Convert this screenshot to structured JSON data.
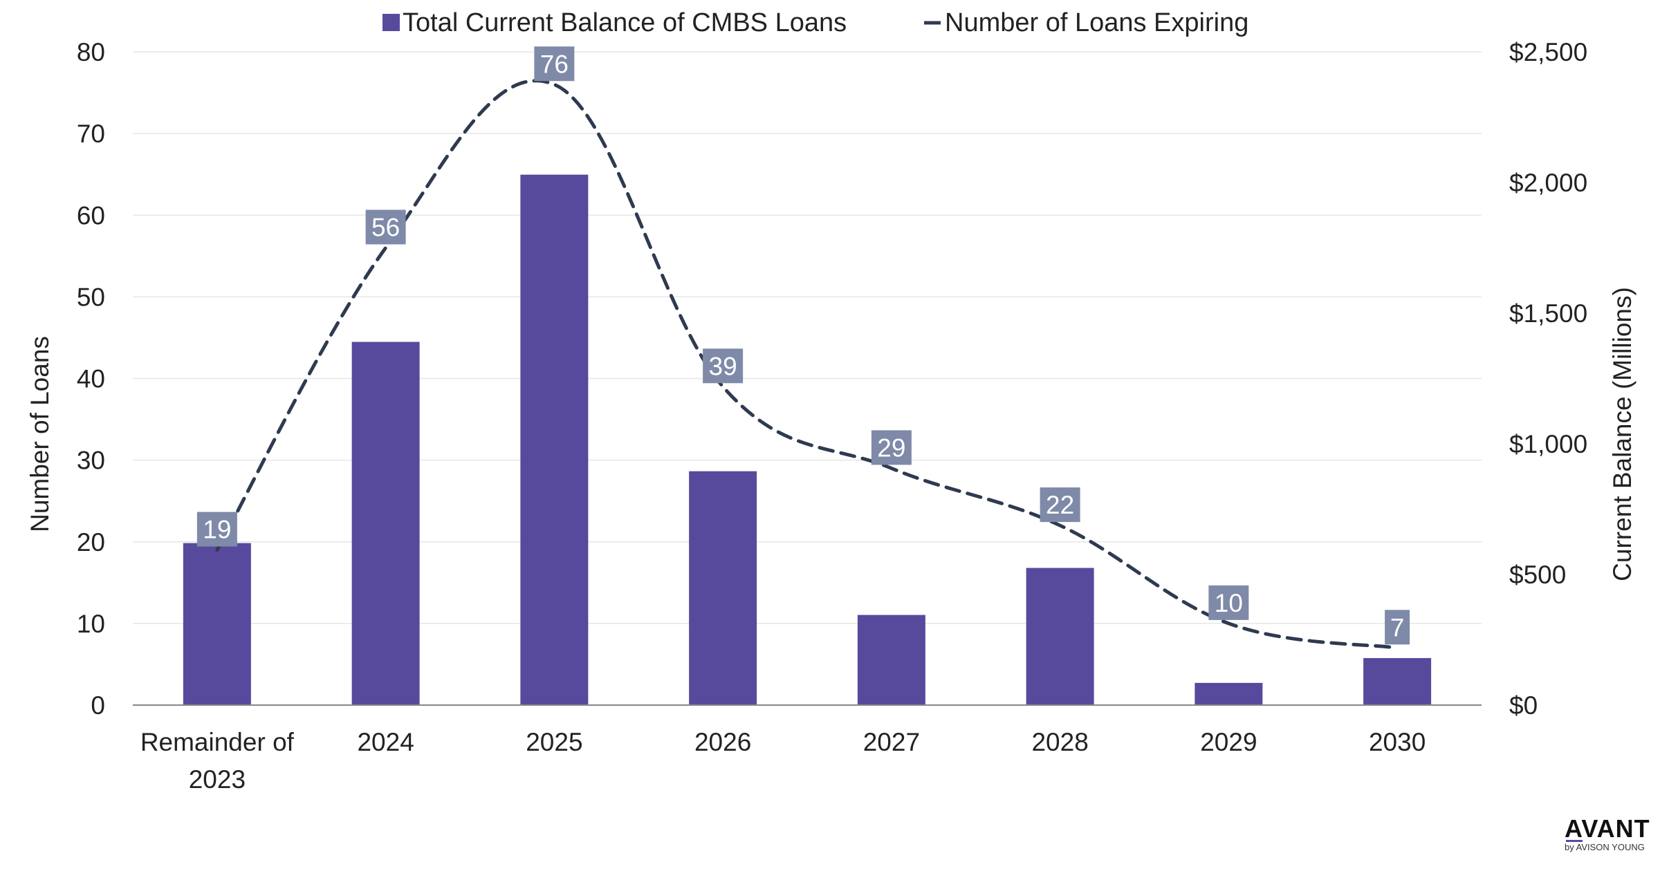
{
  "chart_data": {
    "type": "bar",
    "categories": [
      [
        "Remainder of",
        "2023"
      ],
      "2024",
      "2025",
      "2026",
      "2027",
      "2028",
      "2029",
      "2030"
    ],
    "series": [
      {
        "name": "Total Current Balance of CMBS Loans",
        "chart_type": "bar",
        "axis": "right",
        "color": "#574a9d",
        "values": [
          620,
          1390,
          2030,
          895,
          345,
          525,
          85,
          180
        ]
      },
      {
        "name": "Number of Loans Expiring",
        "chart_type": "line",
        "line_style": "dashed-smooth",
        "axis": "left",
        "color": "#2e3a4f",
        "values": [
          19,
          56,
          76,
          39,
          29,
          22,
          10,
          7
        ],
        "data_labels": [
          "19",
          "56",
          "76",
          "39",
          "29",
          "22",
          "10",
          "7"
        ]
      }
    ],
    "y_left": {
      "label": "Number of Loans",
      "ylim": [
        0,
        80
      ],
      "ticks": [
        0,
        10,
        20,
        30,
        40,
        50,
        60,
        70,
        80
      ]
    },
    "y_right": {
      "label": "Current Balance (Millions)",
      "ylim": [
        0,
        2500
      ],
      "ticks": [
        "$0",
        "$500",
        "$1,000",
        "$1,500",
        "$2,000",
        "$2,500"
      ]
    },
    "grid": true,
    "legend_position": "top-center",
    "data_label_color": "#7f8aa8"
  },
  "logo": {
    "brand": "AVANT",
    "by": "by AVISON YOUNG"
  }
}
